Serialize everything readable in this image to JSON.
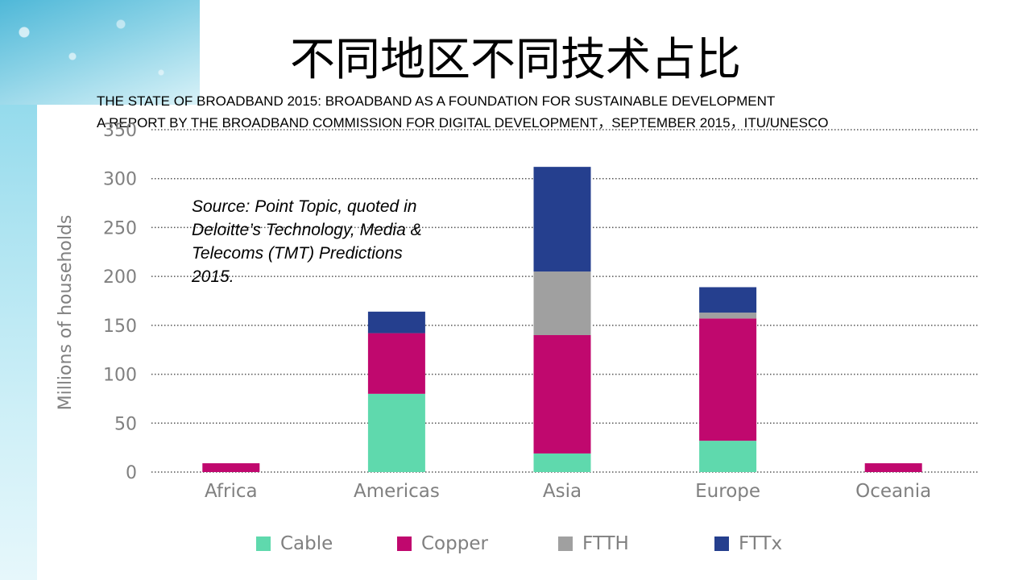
{
  "slide": {
    "title": "不同地区不同技术占比",
    "subtitle_line1": "THE STATE OF BROADBAND 2015: BROADBAND AS A FOUNDATION FOR SUSTAINABLE DEVELOPMENT",
    "subtitle_line2": "A REPORT BY THE BROADBAND COMMISSION FOR DIGITAL DEVELOPMENT，SEPTEMBER 2015，ITU/UNESCO",
    "source_note": "Source: Point Topic, quoted in Deloitte’s Technology, Media & Telecoms (TMT) Predictions 2015."
  },
  "chart_data": {
    "type": "bar",
    "stacked": true,
    "categories": [
      "Africa",
      "Americas",
      "Asia",
      "Europe",
      "Oceania"
    ],
    "series": [
      {
        "name": "Cable",
        "color": "#5fd9ad",
        "values": [
          0,
          80,
          19,
          32,
          0
        ]
      },
      {
        "name": "Copper",
        "color": "#c0086e",
        "values": [
          9,
          62,
          121,
          125,
          9
        ]
      },
      {
        "name": "FTTH",
        "color": "#a0a0a0",
        "values": [
          0,
          0,
          65,
          6,
          0
        ]
      },
      {
        "name": "FTTx",
        "color": "#253f8e",
        "values": [
          0,
          22,
          107,
          26,
          0
        ]
      }
    ],
    "ylabel": "Millions of households",
    "ylim": [
      0,
      350
    ],
    "yticks": [
      0,
      50,
      100,
      150,
      200,
      250,
      300,
      350
    ],
    "grid": true,
    "legend": "bottom"
  }
}
